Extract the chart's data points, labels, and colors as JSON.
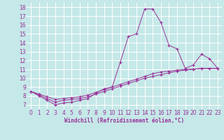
{
  "xlabel": "Windchill (Refroidissement éolien,°C)",
  "bg_color": "#c5e8e8",
  "line_color": "#993399",
  "grid_color": "#ffffff",
  "xlim": [
    -0.5,
    23.5
  ],
  "ylim": [
    6.5,
    18.5
  ],
  "yticks": [
    7,
    8,
    9,
    10,
    11,
    12,
    13,
    14,
    15,
    16,
    17,
    18
  ],
  "xticks": [
    0,
    1,
    2,
    3,
    4,
    5,
    6,
    7,
    8,
    9,
    10,
    11,
    12,
    13,
    14,
    15,
    16,
    17,
    18,
    19,
    20,
    21,
    22,
    23
  ],
  "line1_x": [
    0,
    1,
    2,
    3,
    4,
    5,
    6,
    7,
    8,
    9,
    10,
    11,
    12,
    13,
    14,
    15,
    16,
    17,
    18,
    19,
    20,
    21,
    22,
    23
  ],
  "line1_y": [
    8.5,
    8.0,
    7.5,
    7.0,
    7.2,
    7.3,
    7.5,
    7.7,
    8.3,
    8.8,
    9.0,
    11.8,
    14.7,
    15.0,
    17.8,
    17.8,
    16.3,
    13.7,
    13.3,
    11.1,
    11.5,
    12.7,
    12.2,
    11.1
  ],
  "line2_x": [
    0,
    1,
    2,
    3,
    4,
    5,
    6,
    7,
    8,
    9,
    10,
    11,
    12,
    13,
    14,
    15,
    16,
    17,
    18,
    19,
    20,
    21,
    22,
    23
  ],
  "line2_y": [
    8.5,
    8.2,
    7.9,
    7.6,
    7.7,
    7.8,
    7.9,
    8.1,
    8.4,
    8.7,
    9.0,
    9.3,
    9.6,
    9.9,
    10.2,
    10.5,
    10.7,
    10.8,
    10.9,
    11.0,
    11.0,
    11.1,
    11.1,
    11.1
  ],
  "line3_x": [
    0,
    1,
    2,
    3,
    4,
    5,
    6,
    7,
    8,
    9,
    10,
    11,
    12,
    13,
    14,
    15,
    16,
    17,
    18,
    19,
    20,
    21,
    22,
    23
  ],
  "line3_y": [
    8.5,
    8.1,
    7.7,
    7.3,
    7.5,
    7.6,
    7.7,
    7.9,
    8.2,
    8.5,
    8.8,
    9.1,
    9.4,
    9.7,
    10.0,
    10.2,
    10.4,
    10.6,
    10.8,
    10.9,
    11.0,
    11.1,
    11.1,
    11.1
  ],
  "tick_fontsize": 5.5,
  "xlabel_fontsize": 5.5
}
